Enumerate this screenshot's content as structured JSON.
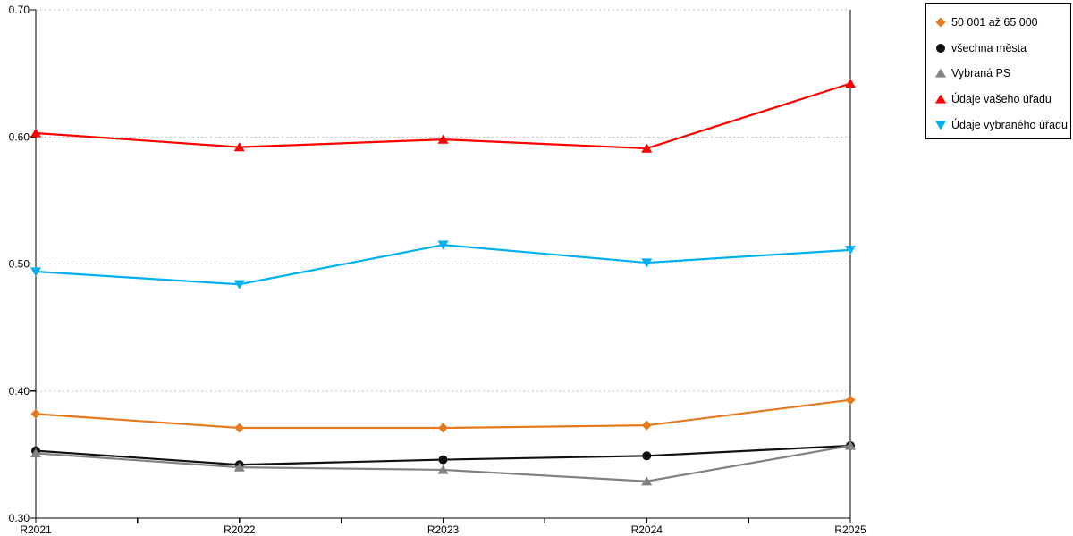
{
  "chart_data": {
    "type": "line",
    "title": "",
    "xlabel": "",
    "ylabel": "",
    "categories": [
      "R2021",
      "R2022",
      "R2023",
      "R2024",
      "R2025"
    ],
    "series": [
      {
        "name": "50 001 až 65 000",
        "marker": "diamond",
        "color": "#E5791E",
        "values": [
          0.382,
          0.371,
          0.371,
          0.373,
          0.393
        ]
      },
      {
        "name": "všechna města",
        "marker": "circle",
        "color": "#111111",
        "values": [
          0.353,
          0.342,
          0.346,
          0.349,
          0.357
        ]
      },
      {
        "name": "Vybraná PS",
        "marker": "triangle-up",
        "color": "#828282",
        "values": [
          0.351,
          0.34,
          0.338,
          0.329,
          0.357
        ]
      },
      {
        "name": "Údaje vašeho úřadu",
        "marker": "triangle-up",
        "color": "#FF0000",
        "values": [
          0.603,
          0.592,
          0.598,
          0.591,
          0.642
        ]
      },
      {
        "name": "Údaje vybraného úřadu",
        "marker": "triangle-down",
        "color": "#00B0F0",
        "values": [
          0.494,
          0.484,
          0.515,
          0.501,
          0.511
        ]
      }
    ],
    "ylim": [
      0.3,
      0.7
    ],
    "y_ticks": [
      "0.30",
      "0.40",
      "0.50",
      "0.60",
      "0.70"
    ],
    "grid": "horizontal-dotted",
    "legend_position": "top-right-outside-box"
  },
  "colors": {
    "background": "#FFFFFF",
    "grid": "#BFBFBF",
    "axis": "#000000",
    "legend_border": "#000000",
    "text": "#000000"
  }
}
